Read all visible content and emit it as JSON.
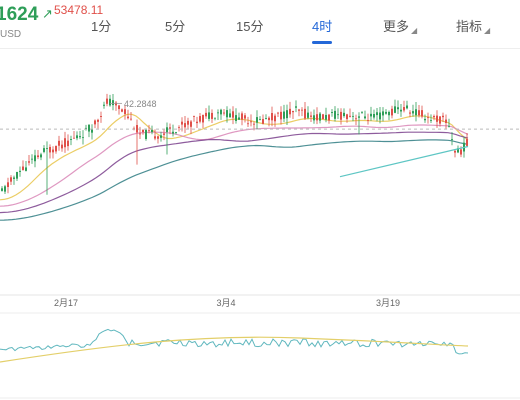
{
  "header": {
    "price": "1624",
    "price_arrow": "↗",
    "ref_price": "53478.11",
    "unit": "USD"
  },
  "tabs": [
    {
      "label": "1分",
      "active": false
    },
    {
      "label": "5分",
      "active": false
    },
    {
      "label": "15分",
      "active": false
    },
    {
      "label": "4时",
      "active": true
    },
    {
      "label": "更多",
      "active": false,
      "has_caret": true
    },
    {
      "label": "指标",
      "active": false,
      "has_caret": true
    }
  ],
  "colors": {
    "up": "#2e9e58",
    "down": "#e0504a",
    "accent": "#2468d8",
    "ma_yellow": "#e8c44a",
    "ma_pink": "#d986b6",
    "ma_purple": "#7a3f8c",
    "ma_teal": "#2f7d82",
    "trendline": "#5ec6c4",
    "indicator_line": "#5fb7be",
    "indicator_avg": "#e3cf6a"
  },
  "chart_data": {
    "type": "candlestick",
    "x_tick_labels": [
      "2月17",
      "3月4",
      "3月19"
    ],
    "annotation": "42.2848",
    "annotation_value": 42.28,
    "ylim": [
      0,
      50
    ],
    "current_level": 34.6,
    "dashed_current_line": true,
    "grid": false,
    "lower_panel": "oscillator with moving-average line",
    "trendline": {
      "start": {
        "x": 340,
        "y": 20.4
      },
      "end": {
        "x": 468,
        "y": 29.4
      }
    }
  }
}
